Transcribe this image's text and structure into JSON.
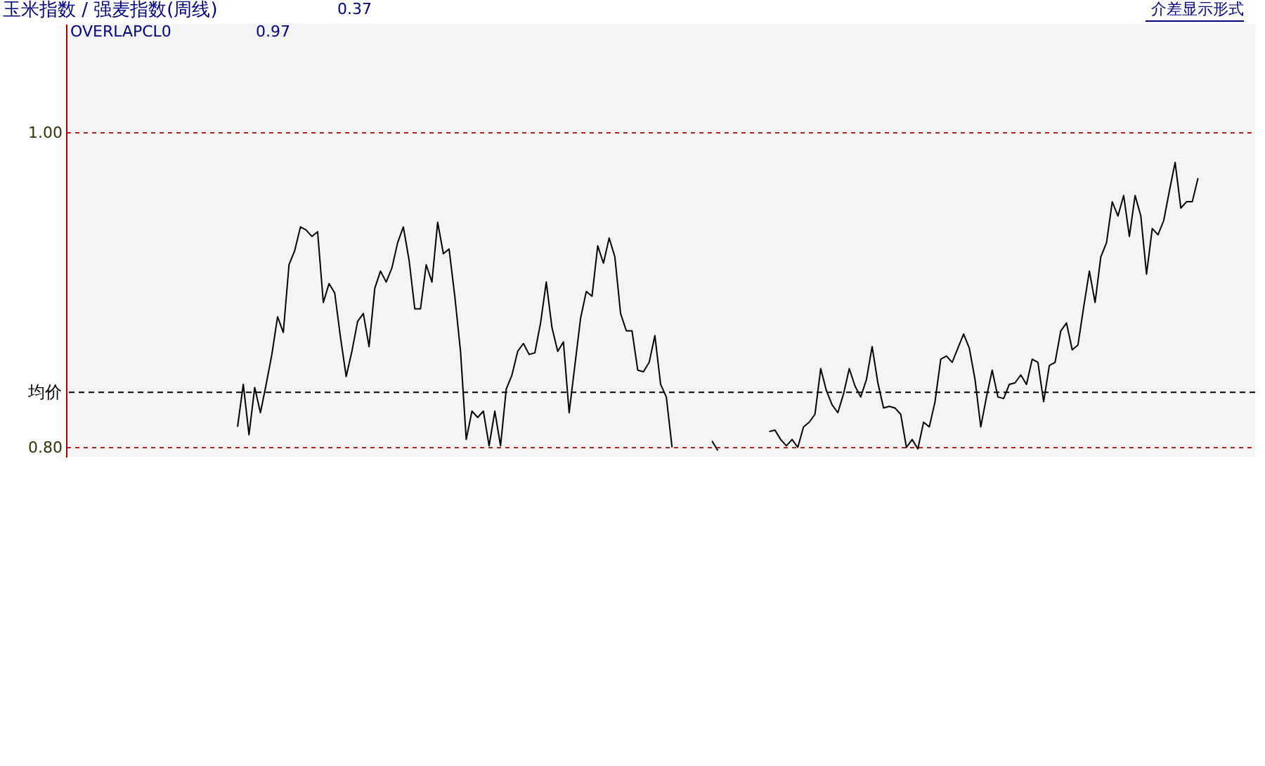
{
  "chart_data": {
    "type": "line",
    "title": "玉米指数 / 强麦指数(周线)",
    "annotations": [
      "0.37",
      "OVERLAPCL0",
      "0.97",
      "介差显示形式"
    ],
    "categories": [
      null,
      null,
      null,
      null,
      null,
      null,
      null,
      null,
      null,
      null,
      null,
      null,
      null,
      null,
      null,
      null,
      null,
      null,
      null,
      null,
      null,
      null,
      null,
      null,
      null,
      null,
      null,
      null,
      null,
      null,
      null,
      null,
      null,
      null,
      null,
      null,
      null,
      null,
      null,
      null,
      null,
      null,
      null,
      null,
      null,
      null,
      null,
      null,
      null,
      null,
      null,
      null,
      null,
      null,
      null,
      null,
      null,
      null,
      null,
      null,
      null,
      null,
      null,
      null,
      null,
      null,
      null,
      null,
      null,
      null,
      null,
      null,
      null,
      null,
      null,
      null,
      null,
      null,
      null,
      null,
      null,
      null,
      null,
      null,
      null,
      null,
      null,
      null,
      null,
      null,
      null,
      null,
      null,
      null,
      null,
      null,
      null,
      null,
      null,
      null,
      null,
      null,
      null,
      null,
      null,
      null,
      null,
      null,
      null,
      null,
      null,
      null,
      null,
      null,
      null,
      null,
      null,
      null,
      null,
      null,
      null,
      null,
      null,
      null,
      null,
      null,
      null,
      null,
      null,
      null,
      null,
      null,
      null,
      null,
      null,
      null,
      null,
      null,
      null,
      null,
      null,
      null,
      null,
      null,
      null,
      null,
      null,
      null,
      null,
      null,
      null,
      null,
      null,
      null,
      null,
      null,
      null,
      null,
      null,
      null,
      null,
      null,
      null,
      null,
      null,
      null,
      null,
      null,
      null,
      null,
      null,
      null,
      null,
      null,
      null,
      null,
      null,
      null,
      null,
      null,
      null,
      null,
      null,
      null,
      null,
      null,
      null,
      null,
      null,
      null,
      null,
      null,
      null,
      null,
      null,
      null,
      null,
      null,
      null,
      null,
      null,
      null,
      null,
      null,
      null,
      null,
      null,
      null,
      null
    ],
    "series": [
      {
        "color": "#000000",
        "values": [
          null,
          null,
          null,
          null,
          null,
          null,
          null,
          null,
          null,
          null,
          null,
          null,
          null,
          null,
          null,
          null,
          null,
          null,
          null,
          null,
          null,
          null,
          null,
          null,
          null,
          null,
          null,
          null,
          null,
          null,
          0.813,
          0.84,
          0.808,
          0.838,
          0.822,
          0.84,
          0.859,
          0.883,
          0.873,
          0.916,
          0.925,
          0.94,
          0.938,
          0.934,
          0.937,
          0.892,
          0.904,
          0.898,
          0.87,
          0.845,
          0.861,
          0.88,
          0.885,
          0.864,
          0.901,
          0.912,
          0.905,
          0.914,
          0.93,
          0.94,
          0.919,
          0.888,
          0.888,
          0.916,
          0.905,
          0.943,
          0.923,
          0.926,
          0.896,
          0.861,
          0.805,
          0.823,
          0.819,
          0.823,
          0.801,
          0.823,
          0.801,
          0.837,
          0.846,
          0.861,
          0.866,
          0.859,
          0.86,
          0.879,
          0.905,
          0.876,
          0.861,
          0.867,
          0.822,
          0.852,
          0.882,
          0.899,
          0.896,
          0.928,
          0.917,
          0.933,
          0.921,
          0.885,
          0.874,
          0.874,
          0.849,
          0.848,
          0.854,
          0.871,
          0.84,
          0.832,
          0.8,
          null,
          null,
          null,
          null,
          null,
          null,
          0.804,
          0.798,
          null,
          null,
          null,
          null,
          null,
          null,
          null,
          null,
          0.81,
          0.811,
          0.805,
          0.801,
          0.805,
          0.8,
          0.813,
          0.816,
          0.821,
          0.85,
          0.836,
          0.827,
          0.822,
          0.834,
          0.85,
          0.839,
          0.832,
          0.843,
          0.864,
          0.841,
          0.825,
          0.826,
          0.825,
          0.821,
          0.8,
          0.805,
          0.799,
          0.816,
          0.813,
          0.829,
          0.856,
          0.858,
          0.854,
          0.863,
          0.872,
          0.863,
          0.843,
          0.813,
          0.832,
          0.849,
          0.832,
          0.831,
          0.84,
          0.841,
          0.846,
          0.84,
          0.856,
          0.854,
          0.829,
          0.852,
          0.854,
          0.874,
          0.879,
          0.862,
          0.865,
          0.889,
          0.912,
          0.892,
          0.921,
          0.93,
          0.956,
          0.947,
          0.96,
          0.934,
          0.96,
          0.947,
          0.91,
          0.939,
          0.935,
          0.944,
          0.963,
          0.981,
          0.952,
          0.956,
          0.956,
          0.971,
          null,
          null,
          null,
          null,
          null,
          null,
          null,
          null,
          null,
          null
        ]
      }
    ],
    "ylim": [
      0.794,
      1.069
    ],
    "yticks": [
      {
        "value": 0.8,
        "label": "0.80"
      },
      {
        "value": 1.0,
        "label": "1.00"
      }
    ],
    "grid": "y",
    "ref_lines": [
      {
        "axis": "y",
        "value": 0.835,
        "label": "均价",
        "color": "#000000",
        "line_style": "dashed"
      }
    ]
  }
}
